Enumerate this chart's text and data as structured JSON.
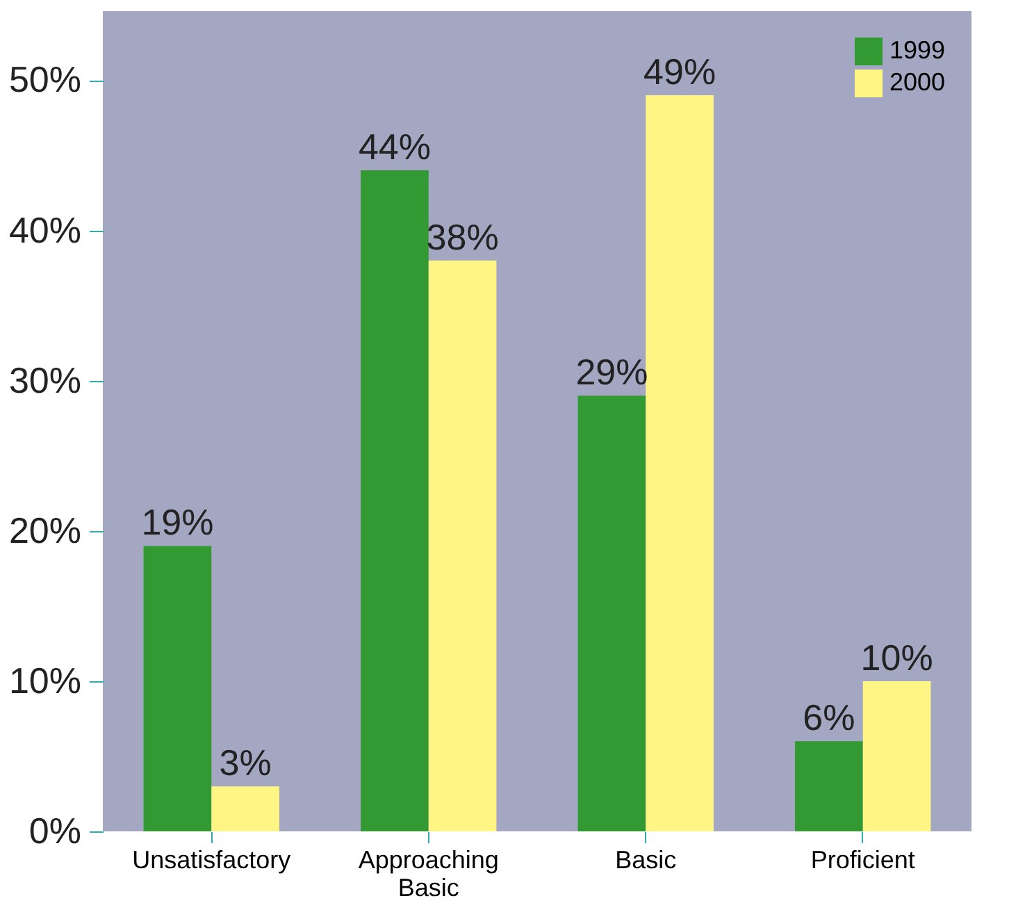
{
  "chart_data": {
    "type": "bar",
    "categories": [
      "Unsatisfactory",
      "Approaching Basic",
      "Basic",
      "Proficient"
    ],
    "series": [
      {
        "name": "1999",
        "color": "#339933",
        "values": [
          19,
          44,
          29,
          6
        ],
        "value_labels": [
          "19%",
          "44%",
          "29%",
          "6%"
        ]
      },
      {
        "name": "2000",
        "color": "#fff585",
        "values": [
          3,
          38,
          49,
          10
        ],
        "value_labels": [
          "3%",
          "38%",
          "49%",
          "10%"
        ]
      }
    ],
    "ylim": [
      0,
      54.6
    ],
    "yticks": [
      {
        "value": 0,
        "label": "0%"
      },
      {
        "value": 10,
        "label": "10%"
      },
      {
        "value": 20,
        "label": "20%"
      },
      {
        "value": 30,
        "label": "30%"
      },
      {
        "value": 40,
        "label": "40%"
      },
      {
        "value": 50,
        "label": "50%"
      }
    ],
    "grid": false,
    "legend": "top right"
  }
}
